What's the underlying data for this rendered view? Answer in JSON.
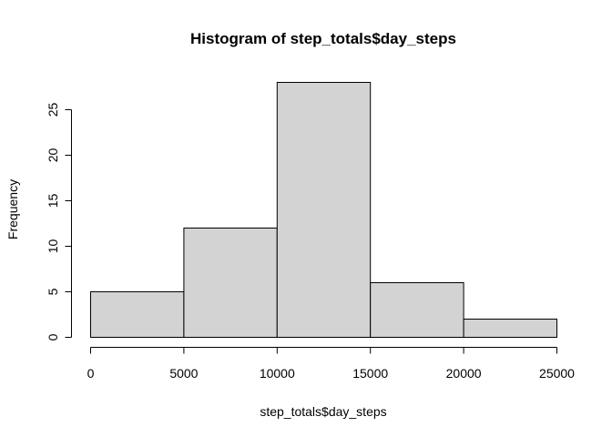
{
  "chart_data": {
    "type": "bar",
    "title": "Histogram of step_totals$day_steps",
    "xlabel": "step_totals$day_steps",
    "ylabel": "Frequency",
    "bins": [
      {
        "start": 0,
        "end": 5000,
        "count": 5
      },
      {
        "start": 5000,
        "end": 10000,
        "count": 12
      },
      {
        "start": 10000,
        "end": 15000,
        "count": 28
      },
      {
        "start": 15000,
        "end": 20000,
        "count": 6
      },
      {
        "start": 20000,
        "end": 25000,
        "count": 2
      }
    ],
    "x_ticks": [
      "0",
      "5000",
      "10000",
      "15000",
      "20000",
      "25000"
    ],
    "y_ticks": [
      "0",
      "5",
      "10",
      "15",
      "20",
      "25"
    ],
    "xlim": [
      0,
      25000
    ],
    "ylim": [
      0,
      28
    ],
    "grid": false,
    "bar_color": "#d3d3d3",
    "edge_color": "#000000"
  }
}
